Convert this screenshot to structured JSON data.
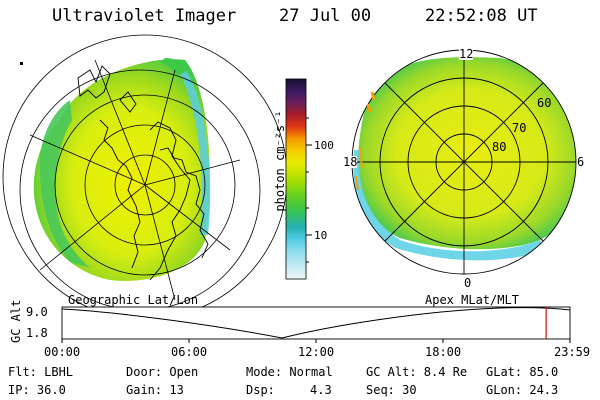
{
  "header": {
    "title": "Ultraviolet Imager",
    "date": "27 Jul 00",
    "time": "22:52:08 UT"
  },
  "left_panel": {
    "caption": "Geographic Lat/Lon"
  },
  "right_panel": {
    "caption": "Apex MLat/MLT",
    "mlt_labels": [
      "12",
      "18",
      "6",
      "0"
    ],
    "mlat_labels": [
      "60",
      "70",
      "80"
    ]
  },
  "colorbar": {
    "label": "photon cm⁻²s⁻¹",
    "ticks": [
      "100",
      "10"
    ],
    "colors": [
      "#1a0f2e",
      "#2b1650",
      "#4a1f6a",
      "#6a1f5a",
      "#9a1b2e",
      "#c81f1f",
      "#e84a14",
      "#f5a000",
      "#f2e000",
      "#c0e800",
      "#7ad61e",
      "#3ec84a",
      "#2ab0b8",
      "#5fd2e6",
      "#a8e6f0",
      "#e8f4f8"
    ]
  },
  "timeline": {
    "ylabel": "GC Alt",
    "y_ticks": [
      "9.0",
      "1.8"
    ],
    "x_ticks": [
      "00:00",
      "06:00",
      "12:00",
      "18:00",
      "23:59"
    ],
    "current_time_fraction": 0.953
  },
  "info": {
    "flt": "Flt: LBHL",
    "door": "Door: Open",
    "mode": "Mode: Normal",
    "gcalt": "GC Alt: 8.4 Re",
    "glat": "GLat: 85.0",
    "ip": "IP: 36.0",
    "gain": "Gain: 13",
    "dsp_label": "Dsp:",
    "dsp_value": "4.3",
    "seq": "Seq: 30",
    "glon": "GLon: 24.3"
  }
}
